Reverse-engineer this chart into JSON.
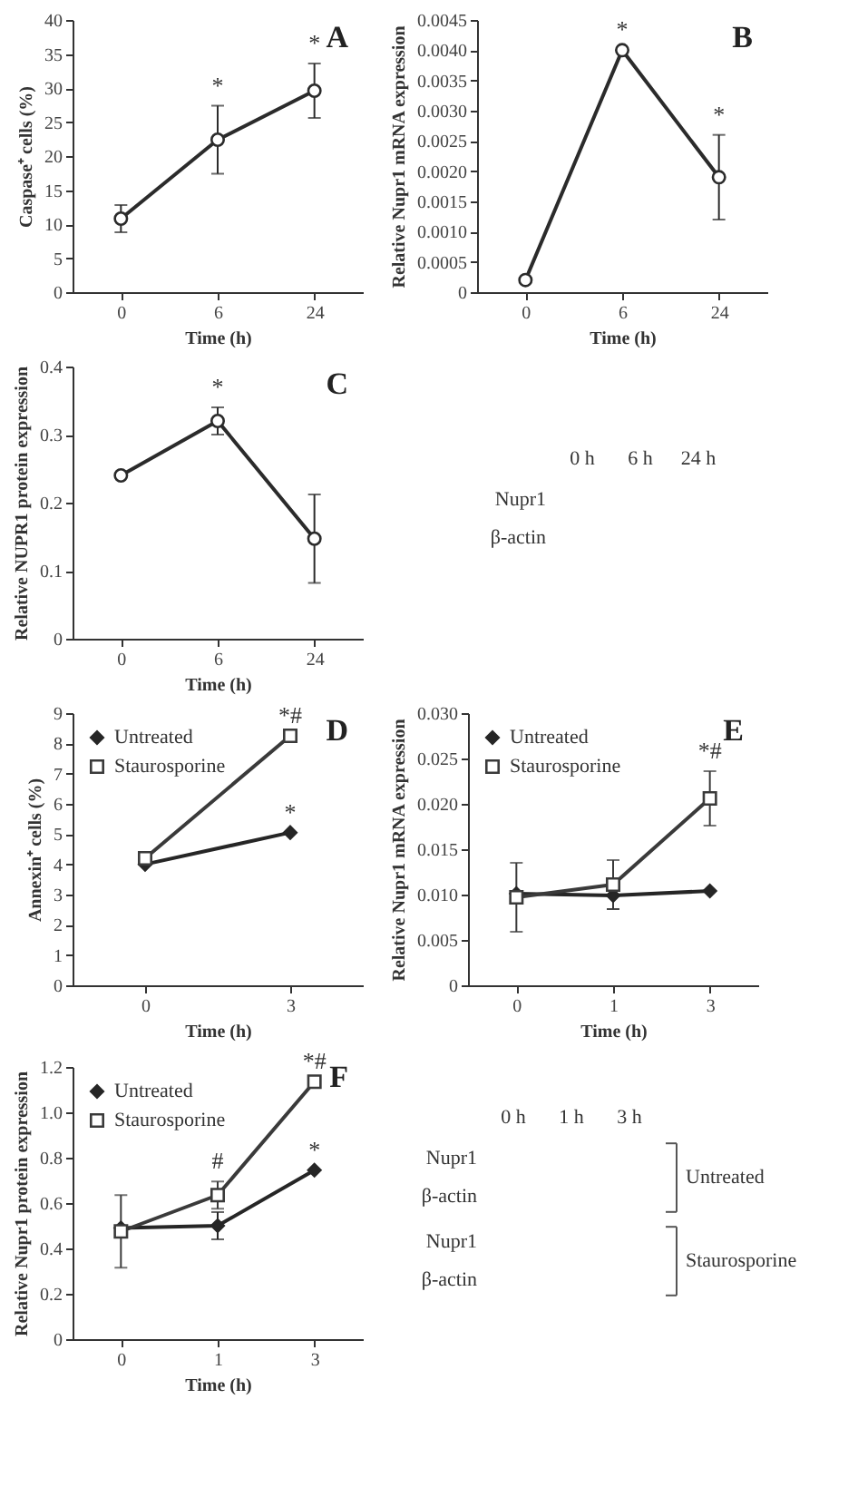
{
  "chart_data": [
    {
      "type": "line",
      "title": "A",
      "xlabel": "Time (h)",
      "ylabel": "Caspase⁺ cells (%)",
      "categories": [
        "0",
        "6",
        "24"
      ],
      "values": [
        10.8,
        22.4,
        29.6
      ],
      "errors": [
        2,
        5,
        4
      ],
      "color": "#2b2b2b",
      "marker": "circle",
      "ylim": [
        0,
        40
      ],
      "yticks": [
        0,
        5,
        10,
        15,
        20,
        25,
        30,
        35,
        40
      ],
      "annotations": [
        {
          "text": "*",
          "x": "6",
          "y": 27.4
        },
        {
          "text": "*",
          "x": "24",
          "y": 33.6
        }
      ]
    },
    {
      "type": "line",
      "title": "B",
      "xlabel": "Time (h)",
      "ylabel": "Relative Nupr1 mRNA expression",
      "categories": [
        "0",
        "6",
        "24"
      ],
      "values": [
        0.0002,
        0.004,
        0.0019
      ],
      "errors": [
        null,
        null,
        0.0007
      ],
      "color": "#2b2b2b",
      "marker": "circle",
      "ylim": [
        0,
        0.0045
      ],
      "yticks": [
        0,
        0.0005,
        {
          "value": 0.001,
          "label": "0.0010"
        },
        0.0015,
        {
          "value": 0.002,
          "label": "0.0020"
        },
        0.0025,
        {
          "value": 0.003,
          "label": "0.0030"
        },
        0.0035,
        {
          "value": 0.004,
          "label": "0.0040"
        },
        0.0045
      ],
      "annotations": [
        {
          "text": "*",
          "x": "6",
          "y": 0.004
        },
        {
          "text": "*",
          "x": "24",
          "y": 0.0026
        }
      ]
    },
    {
      "type": "line",
      "title": "C",
      "xlabel": "Time (h)",
      "ylabel": "Relative NUPR1 protein expression",
      "categories": [
        "0",
        "6",
        "24"
      ],
      "values": [
        0.24,
        0.32,
        0.147
      ],
      "errors": [
        null,
        0.02,
        0.065
      ],
      "color": "#2b2b2b",
      "marker": "circle",
      "ylim": [
        0,
        0.4
      ],
      "yticks": [
        0,
        0.1,
        0.2,
        0.3,
        0.4
      ],
      "annotations": [
        {
          "text": "*",
          "x": "6",
          "y": 0.34
        }
      ]
    },
    {
      "type": "other",
      "categories": [
        "0 h",
        "6 h",
        "24 h"
      ],
      "y_categories": [
        "Nupr1",
        "β-actin"
      ]
    },
    {
      "type": "line",
      "title": "D",
      "xlabel": "Time (h)",
      "ylabel": "Annexin⁺ cells (%)",
      "categories": [
        "0",
        "3"
      ],
      "series": [
        {
          "name": "Untreated",
          "color": "#262626",
          "marker": "diamond",
          "values": [
            4.0,
            5.05
          ]
        },
        {
          "name": "Staurosporine",
          "color": "#3a3a3a",
          "marker": "square",
          "values": [
            4.2,
            8.25
          ]
        }
      ],
      "legend": "top left",
      "ylim": [
        0,
        9
      ],
      "yticks": [
        0,
        1,
        2,
        3,
        4,
        5,
        6,
        7,
        8,
        9
      ],
      "annotations": [
        {
          "text": "*",
          "x": "3",
          "y": 5.05
        },
        {
          "text": "*#",
          "x": "3",
          "y": 8.25
        }
      ]
    },
    {
      "type": "line",
      "title": "E",
      "xlabel": "Time (h)",
      "ylabel": "Relative Nupr1 mRNA expression",
      "categories": [
        "0",
        "1",
        "3"
      ],
      "series": [
        {
          "name": "Untreated",
          "color": "#262626",
          "marker": "diamond",
          "values": [
            0.0101,
            0.0099,
            0.0104
          ],
          "errors": [
            null,
            0.0015,
            null
          ]
        },
        {
          "name": "Staurosporine",
          "color": "#3a3a3a",
          "marker": "square",
          "values": [
            0.0097,
            0.0111,
            0.0206
          ],
          "errors": [
            0.0038,
            0.0027,
            0.003
          ]
        }
      ],
      "legend": "top left",
      "ylim": [
        0,
        0.03
      ],
      "yticks": [
        0,
        0.005,
        {
          "value": 0.01,
          "label": "0.010"
        },
        0.015,
        {
          "value": 0.02,
          "label": "0.020"
        },
        0.025,
        {
          "value": 0.03,
          "label": "0.030"
        }
      ],
      "annotations": [
        {
          "text": "*#",
          "x": "3",
          "y": 0.0236
        }
      ]
    },
    {
      "type": "line",
      "title": "F",
      "xlabel": "Time (h)",
      "ylabel": "Relative Nupr1 protein expression",
      "categories": [
        "0",
        "1",
        "3"
      ],
      "series": [
        {
          "name": "Untreated",
          "color": "#262626",
          "marker": "diamond",
          "values": [
            0.49,
            0.5,
            0.745
          ],
          "errors": [
            null,
            0.06,
            null
          ]
        },
        {
          "name": "Staurosporine",
          "color": "#3a3a3a",
          "marker": "square",
          "values": [
            0.475,
            0.635,
            1.135
          ],
          "errors": [
            0.16,
            0.06,
            null
          ]
        }
      ],
      "legend": "top left",
      "ylim": [
        0,
        1.2
      ],
      "yticks": [
        0,
        0.2,
        0.4,
        0.6,
        0.8,
        {
          "value": 1,
          "label": "1.0"
        },
        1.2
      ],
      "annotations": [
        {
          "text": "#",
          "x": "1",
          "y": 0.695
        },
        {
          "text": "*",
          "x": "3",
          "y": 0.745
        },
        {
          "text": "*#",
          "x": "3",
          "y": 1.135
        }
      ]
    },
    {
      "type": "other",
      "categories": [
        "0 h",
        "1 h",
        "3 h"
      ],
      "y_categories": [
        "Nupr1",
        "β-actin",
        "Nupr1",
        "β-actin"
      ],
      "y2_categories": [
        "Untreated",
        "Staurosporine"
      ]
    }
  ]
}
